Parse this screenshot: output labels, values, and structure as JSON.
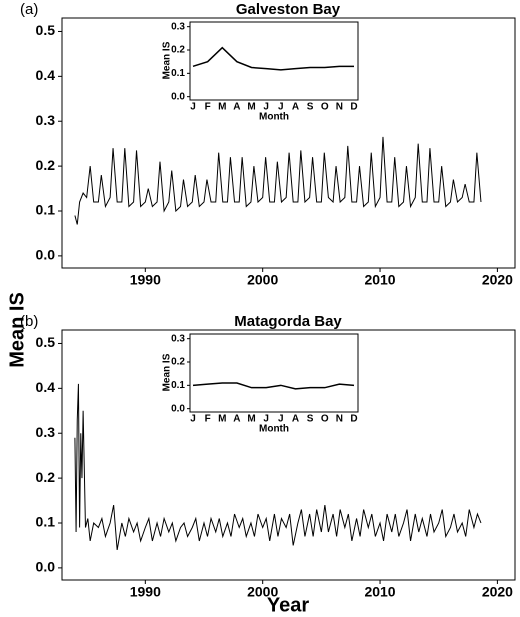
{
  "axis_labels": {
    "y": "Mean IS",
    "x": "Year"
  },
  "chart_data": [
    {
      "type": "line",
      "panel_label": "(a)",
      "title": "Galveston Bay",
      "color": "#000000",
      "x": [
        1984.0,
        1984.2,
        1984.4,
        1984.7,
        1985.0,
        1985.3,
        1985.6,
        1986.0,
        1986.25,
        1986.6,
        1987.0,
        1987.25,
        1987.6,
        1988.0,
        1988.25,
        1988.6,
        1989.0,
        1989.25,
        1989.6,
        1990.0,
        1990.25,
        1990.6,
        1991.0,
        1991.25,
        1991.6,
        1992.0,
        1992.25,
        1992.6,
        1993.0,
        1993.25,
        1993.6,
        1994.0,
        1994.25,
        1994.6,
        1995.0,
        1995.25,
        1995.6,
        1996.0,
        1996.25,
        1996.6,
        1997.0,
        1997.25,
        1997.6,
        1998.0,
        1998.25,
        1998.6,
        1999.0,
        1999.25,
        1999.6,
        2000.0,
        2000.25,
        2000.6,
        2001.0,
        2001.25,
        2001.6,
        2002.0,
        2002.25,
        2002.6,
        2003.0,
        2003.25,
        2003.6,
        2004.0,
        2004.25,
        2004.6,
        2005.0,
        2005.25,
        2005.6,
        2006.0,
        2006.25,
        2006.6,
        2007.0,
        2007.25,
        2007.6,
        2008.0,
        2008.25,
        2008.6,
        2009.0,
        2009.25,
        2009.6,
        2010.0,
        2010.25,
        2010.6,
        2011.0,
        2011.25,
        2011.6,
        2012.0,
        2012.25,
        2012.6,
        2013.0,
        2013.25,
        2013.6,
        2014.0,
        2014.25,
        2014.6,
        2015.0,
        2015.25,
        2015.6,
        2016.0,
        2016.25,
        2016.6,
        2017.0,
        2017.25,
        2017.6,
        2018.0,
        2018.25,
        2018.6
      ],
      "values": [
        0.09,
        0.07,
        0.12,
        0.14,
        0.13,
        0.2,
        0.12,
        0.12,
        0.18,
        0.11,
        0.13,
        0.24,
        0.12,
        0.12,
        0.24,
        0.11,
        0.12,
        0.235,
        0.11,
        0.12,
        0.15,
        0.11,
        0.12,
        0.21,
        0.1,
        0.12,
        0.19,
        0.1,
        0.11,
        0.17,
        0.11,
        0.12,
        0.18,
        0.11,
        0.12,
        0.17,
        0.12,
        0.12,
        0.23,
        0.12,
        0.12,
        0.22,
        0.12,
        0.12,
        0.22,
        0.11,
        0.12,
        0.2,
        0.12,
        0.13,
        0.22,
        0.12,
        0.12,
        0.21,
        0.12,
        0.13,
        0.23,
        0.12,
        0.12,
        0.235,
        0.12,
        0.13,
        0.22,
        0.12,
        0.12,
        0.23,
        0.13,
        0.12,
        0.2,
        0.12,
        0.13,
        0.245,
        0.12,
        0.12,
        0.2,
        0.11,
        0.12,
        0.23,
        0.11,
        0.13,
        0.265,
        0.12,
        0.12,
        0.22,
        0.11,
        0.12,
        0.2,
        0.11,
        0.13,
        0.25,
        0.12,
        0.12,
        0.24,
        0.12,
        0.12,
        0.2,
        0.11,
        0.12,
        0.17,
        0.12,
        0.13,
        0.16,
        0.12,
        0.12,
        0.23,
        0.12
      ],
      "xlim": [
        1982.9,
        2021.5
      ],
      "ylim": [
        -0.027,
        0.53
      ],
      "xticks": [
        1990,
        2000,
        2010,
        2020
      ],
      "yticks": [
        {
          "value": 0,
          "label": "0.0"
        },
        0.1,
        0.2,
        0.3,
        0.4,
        0.5
      ],
      "inset": {
        "type": "line",
        "ylabel": "Mean IS",
        "xlabel": "Month",
        "categories": [
          "J",
          "F",
          "M",
          "A",
          "M",
          "J",
          "J",
          "A",
          "S",
          "O",
          "N",
          "D"
        ],
        "values": [
          0.13,
          0.15,
          0.21,
          0.15,
          0.125,
          0.12,
          0.115,
          0.12,
          0.125,
          0.125,
          0.13,
          0.13
        ],
        "ylim": [
          -0.01,
          0.32
        ],
        "yticks": [
          {
            "value": 0,
            "label": "0.0"
          },
          0.1,
          0.2,
          0.3
        ]
      }
    },
    {
      "type": "line",
      "panel_label": "(b)",
      "title": "Matagorda Bay",
      "color": "#000000",
      "x": [
        1984.0,
        1984.1,
        1984.2,
        1984.3,
        1984.4,
        1984.5,
        1984.6,
        1984.7,
        1984.9,
        1985.1,
        1985.3,
        1985.6,
        1986.0,
        1986.3,
        1986.6,
        1987.0,
        1987.3,
        1987.6,
        1988.0,
        1988.3,
        1988.6,
        1989.0,
        1989.3,
        1989.6,
        1990.0,
        1990.3,
        1990.6,
        1991.0,
        1991.3,
        1991.6,
        1992.0,
        1992.3,
        1992.6,
        1993.0,
        1993.3,
        1993.6,
        1994.0,
        1994.3,
        1994.6,
        1995.0,
        1995.3,
        1995.6,
        1996.0,
        1996.3,
        1996.6,
        1997.0,
        1997.3,
        1997.6,
        1998.0,
        1998.3,
        1998.6,
        1999.0,
        1999.3,
        1999.6,
        2000.0,
        2000.3,
        2000.6,
        2001.0,
        2001.3,
        2001.6,
        2002.0,
        2002.3,
        2002.6,
        2003.0,
        2003.3,
        2003.6,
        2004.0,
        2004.3,
        2004.6,
        2005.0,
        2005.3,
        2005.6,
        2006.0,
        2006.3,
        2006.6,
        2007.0,
        2007.3,
        2007.6,
        2008.0,
        2008.3,
        2008.6,
        2009.0,
        2009.3,
        2009.6,
        2010.0,
        2010.3,
        2010.6,
        2011.0,
        2011.3,
        2011.6,
        2012.0,
        2012.3,
        2012.6,
        2013.0,
        2013.3,
        2013.6,
        2014.0,
        2014.3,
        2014.6,
        2015.0,
        2015.3,
        2015.6,
        2016.0,
        2016.3,
        2016.6,
        2017.0,
        2017.3,
        2017.6,
        2018.0,
        2018.3,
        2018.6
      ],
      "values": [
        0.29,
        0.08,
        0.33,
        0.41,
        0.09,
        0.3,
        0.2,
        0.35,
        0.09,
        0.11,
        0.06,
        0.1,
        0.09,
        0.11,
        0.07,
        0.1,
        0.14,
        0.04,
        0.1,
        0.07,
        0.11,
        0.08,
        0.1,
        0.06,
        0.09,
        0.11,
        0.06,
        0.1,
        0.07,
        0.11,
        0.08,
        0.1,
        0.06,
        0.09,
        0.1,
        0.07,
        0.09,
        0.11,
        0.06,
        0.1,
        0.07,
        0.11,
        0.08,
        0.11,
        0.07,
        0.1,
        0.07,
        0.12,
        0.09,
        0.11,
        0.07,
        0.1,
        0.07,
        0.12,
        0.09,
        0.11,
        0.06,
        0.12,
        0.07,
        0.11,
        0.09,
        0.12,
        0.05,
        0.1,
        0.13,
        0.07,
        0.12,
        0.07,
        0.13,
        0.08,
        0.14,
        0.08,
        0.12,
        0.07,
        0.13,
        0.09,
        0.12,
        0.06,
        0.11,
        0.07,
        0.13,
        0.09,
        0.12,
        0.07,
        0.1,
        0.06,
        0.12,
        0.08,
        0.12,
        0.07,
        0.1,
        0.13,
        0.06,
        0.12,
        0.08,
        0.11,
        0.07,
        0.12,
        0.08,
        0.1,
        0.13,
        0.07,
        0.09,
        0.12,
        0.08,
        0.1,
        0.07,
        0.13,
        0.09,
        0.12,
        0.1
      ],
      "xlim": [
        1982.9,
        2021.5
      ],
      "ylim": [
        -0.027,
        0.53
      ],
      "xticks": [
        1990,
        2000,
        2010,
        2020
      ],
      "yticks": [
        {
          "value": 0,
          "label": "0.0"
        },
        0.1,
        0.2,
        0.3,
        0.4,
        0.5
      ],
      "inset": {
        "type": "line",
        "ylabel": "Mean IS",
        "xlabel": "Month",
        "categories": [
          "J",
          "F",
          "M",
          "A",
          "M",
          "J",
          "J",
          "A",
          "S",
          "O",
          "N",
          "D"
        ],
        "values": [
          0.1,
          0.105,
          0.11,
          0.11,
          0.09,
          0.09,
          0.1,
          0.085,
          0.09,
          0.09,
          0.105,
          0.1
        ],
        "ylim": [
          -0.01,
          0.32
        ],
        "yticks": [
          {
            "value": 0,
            "label": "0.0"
          },
          0.1,
          0.2,
          0.3
        ]
      }
    }
  ]
}
